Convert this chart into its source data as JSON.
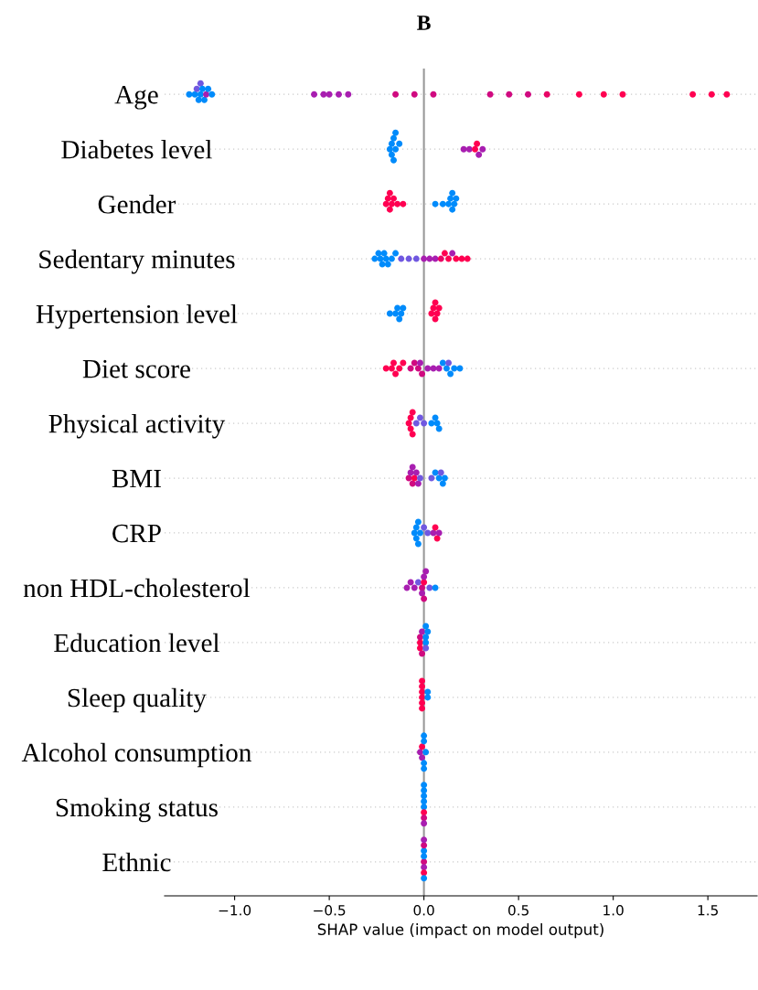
{
  "chart_data": {
    "type": "scatter",
    "orientation": "horizontal",
    "title": "B",
    "xlabel": "SHAP value (impact on model output)",
    "categories": [
      "Age",
      "Diabetes level",
      "Gender",
      "Sedentary minutes",
      "Hypertension level",
      "Diet score",
      "Physical activity",
      "BMI",
      "CRP",
      "non HDL-cholesterol",
      "Education level",
      "Sleep quality",
      "Alcohol consumption",
      "Smoking status",
      "Ethnic"
    ],
    "xlim": [
      -1.37,
      1.76
    ],
    "xticks": [
      {
        "value": -1.0,
        "label": "−1.0"
      },
      {
        "value": -0.5,
        "label": "−0.5"
      },
      {
        "value": 0.0,
        "label": "0.0"
      },
      {
        "value": 0.5,
        "label": "0.5"
      },
      {
        "value": 1.0,
        "label": "1.0"
      },
      {
        "value": 1.5,
        "label": "1.5"
      }
    ],
    "grid": "y",
    "tick_labels": "x",
    "ref_lines": [
      {
        "axis": "x",
        "value": 0,
        "color": "#999999"
      }
    ],
    "series": [
      {
        "values": [
          -1.24,
          -0.18,
          -0.2,
          -0.26,
          -0.18,
          -0.2,
          -0.08,
          -0.08,
          -0.05,
          -0.09,
          -0.02,
          -0.01,
          -0.02,
          0.0,
          0.0
        ],
        "colors": [
          "#008bfb",
          "#008bfb",
          "#ff0051",
          "#008bfb",
          "#008bfb",
          "#ff0051",
          "#ff0051",
          "#d00a80",
          "#008bfb",
          "#a81eb0",
          "#ff0051",
          "#ff0051",
          "#a81eb0",
          "#008bfb",
          "#d00a80"
        ]
      },
      {
        "values": [
          -1.21,
          -0.17,
          -0.19,
          -0.24,
          -0.15,
          -0.17,
          -0.07,
          -0.07,
          -0.04,
          -0.07,
          -0.02,
          -0.01,
          -0.01,
          0.0,
          0.0
        ],
        "colors": [
          "#008bfb",
          "#008bfb",
          "#ff0051",
          "#008bfb",
          "#008bfb",
          "#ff0051",
          "#ff0051",
          "#a81eb0",
          "#008bfb",
          "#a81eb0",
          "#d00a80",
          "#ff0051",
          "#ff0051",
          "#008bfb",
          "#008bfb"
        ]
      },
      {
        "values": [
          -1.2,
          -0.17,
          -0.18,
          -0.23,
          -0.14,
          -0.16,
          -0.07,
          -0.06,
          -0.04,
          -0.05,
          -0.02,
          -0.01,
          -0.01,
          0.0,
          0.0
        ],
        "colors": [
          "#7058e0",
          "#008bfb",
          "#ff0051",
          "#008bfb",
          "#008bfb",
          "#ff0051",
          "#ff0051",
          "#d00a80",
          "#008bfb",
          "#a81eb0",
          "#ff0051",
          "#ff0051",
          "#a81eb0",
          "#ff0051",
          "#a81eb0"
        ]
      },
      {
        "values": [
          -1.19,
          -0.16,
          -0.18,
          -0.22,
          -0.13,
          -0.15,
          -0.06,
          -0.06,
          -0.03,
          -0.03,
          -0.01,
          -0.01,
          0.0,
          0.0,
          0.0
        ],
        "colors": [
          "#008bfb",
          "#008bfb",
          "#ff0051",
          "#008bfb",
          "#008bfb",
          "#ff0051",
          "#ff0051",
          "#a81eb0",
          "#008bfb",
          "#7058e0",
          "#a81eb0",
          "#ff0051",
          "#008bfb",
          "#008bfb",
          "#008bfb"
        ]
      },
      {
        "values": [
          -1.18,
          -0.16,
          -0.17,
          -0.21,
          -0.12,
          -0.13,
          -0.06,
          -0.05,
          -0.03,
          -0.01,
          -0.01,
          -0.01,
          0.0,
          0.0,
          0.0
        ],
        "colors": [
          "#008bfb",
          "#008bfb",
          "#ff0051",
          "#008bfb",
          "#008bfb",
          "#ff0051",
          "#ff0051",
          "#ff0051",
          "#008bfb",
          "#d00a80",
          "#d00a80",
          "#ff0051",
          "#008bfb",
          "#d00a80",
          "#ff0051"
        ]
      },
      {
        "values": [
          -1.18,
          -0.15,
          -0.16,
          -0.2,
          -0.11,
          -0.11,
          -0.04,
          -0.04,
          -0.02,
          -0.01,
          0.01,
          -0.01,
          0.0,
          0.0,
          0.0
        ],
        "colors": [
          "#7058e0",
          "#008bfb",
          "#ff0051",
          "#008bfb",
          "#008bfb",
          "#ff0051",
          "#7058e0",
          "#a81eb0",
          "#008bfb",
          "#a81eb0",
          "#008bfb",
          "#ff0051",
          "#008bfb",
          "#008bfb",
          "#d00a80"
        ]
      },
      {
        "values": [
          -1.17,
          -0.15,
          -0.14,
          -0.19,
          0.04,
          -0.07,
          -0.02,
          -0.03,
          0.0,
          0.0,
          0.01,
          0.02,
          0.0,
          0.0,
          0.0
        ],
        "colors": [
          "#008bfb",
          "#008bfb",
          "#ff0051",
          "#008bfb",
          "#ff0051",
          "#d00a80",
          "#7058e0",
          "#a81eb0",
          "#7058e0",
          "#ff0051",
          "#008bfb",
          "#008bfb",
          "#008bfb",
          "#a81eb0",
          "#008bfb"
        ]
      },
      {
        "values": [
          -1.16,
          -0.13,
          -0.11,
          -0.17,
          0.05,
          -0.05,
          0.0,
          -0.02,
          0.02,
          0.0,
          0.01,
          0.02,
          0.01,
          0.0,
          0.0
        ],
        "colors": [
          "#008bfb",
          "#008bfb",
          "#ff0051",
          "#008bfb",
          "#ff0051",
          "#d00a80",
          "#7058e0",
          "#7058e0",
          "#7058e0",
          "#a81eb0",
          "#7058e0",
          "#008bfb",
          "#008bfb",
          "#008bfb",
          "#a81eb0"
        ]
      },
      {
        "values": [
          -1.15,
          0.21,
          0.06,
          -0.15,
          0.06,
          -0.03,
          0.04,
          0.04,
          0.05,
          0.0,
          0.01,
          null,
          null,
          null,
          null
        ],
        "colors": [
          "#a81eb0",
          "#a81eb0",
          "#008bfb",
          "#008bfb",
          "#ff0051",
          "#d00a80",
          "#008bfb",
          "#7058e0",
          "#a81eb0",
          "#d00a80",
          "#008bfb",
          null,
          null,
          null,
          null
        ]
      },
      {
        "values": [
          -1.14,
          0.24,
          0.1,
          -0.12,
          0.06,
          -0.02,
          0.06,
          0.06,
          0.06,
          0.01,
          0.02,
          null,
          null,
          null,
          null
        ],
        "colors": [
          "#008bfb",
          "#a81eb0",
          "#008bfb",
          "#7058e0",
          "#ff0051",
          "#a81eb0",
          "#008bfb",
          "#008bfb",
          "#ff0051",
          "#a81eb0",
          "#008bfb",
          null,
          null,
          null,
          null
        ]
      },
      {
        "values": [
          -1.12,
          0.27,
          0.13,
          -0.08,
          0.07,
          -0.01,
          0.07,
          0.08,
          0.07,
          0.03,
          null,
          null,
          null,
          null,
          null
        ],
        "colors": [
          "#008bfb",
          "#ff0051",
          "#008bfb",
          "#7058e0",
          "#ff0051",
          "#d00a80",
          "#008bfb",
          "#008bfb",
          "#ff0051",
          "#7058e0",
          null,
          null,
          null,
          null,
          null
        ]
      },
      {
        "values": [
          -0.58,
          0.28,
          0.14,
          -0.04,
          0.08,
          0.02,
          0.08,
          0.09,
          0.08,
          0.06,
          null,
          null,
          null,
          null,
          null
        ],
        "colors": [
          "#a81eb0",
          "#ff0051",
          "#008bfb",
          "#7058e0",
          "#ff0051",
          "#a81eb0",
          "#008bfb",
          "#7058e0",
          "#a81eb0",
          "#008bfb",
          null,
          null,
          null,
          null,
          null
        ]
      },
      {
        "values": [
          -0.53,
          0.29,
          0.15,
          0.0,
          null,
          0.05,
          null,
          0.1,
          null,
          null,
          null,
          null,
          null,
          null,
          null
        ],
        "colors": [
          "#a81eb0",
          "#a81eb0",
          "#008bfb",
          "#a81eb0",
          null,
          "#a81eb0",
          null,
          "#008bfb",
          null,
          null,
          null,
          null,
          null,
          null,
          null
        ]
      },
      {
        "values": [
          -0.5,
          0.31,
          0.15,
          0.03,
          null,
          0.08,
          null,
          0.11,
          null,
          null,
          null,
          null,
          null,
          null,
          null
        ],
        "colors": [
          "#a81eb0",
          "#a81eb0",
          "#008bfb",
          "#a81eb0",
          null,
          "#a81eb0",
          null,
          "#008bfb",
          null,
          null,
          null,
          null,
          null,
          null,
          null
        ]
      },
      {
        "values": [
          -0.45,
          null,
          0.16,
          0.06,
          null,
          0.1,
          null,
          null,
          null,
          null,
          null,
          null,
          null,
          null,
          null
        ],
        "colors": [
          "#a81eb0",
          null,
          "#008bfb",
          "#a81eb0",
          null,
          "#008bfb",
          null,
          null,
          null,
          null,
          null,
          null,
          null,
          null,
          null
        ]
      },
      {
        "values": [
          -0.4,
          null,
          0.17,
          0.09,
          null,
          0.12,
          null,
          null,
          null,
          null,
          null,
          null,
          null,
          null,
          null
        ],
        "colors": [
          "#a81eb0",
          null,
          "#008bfb",
          "#e80565",
          null,
          "#008bfb",
          null,
          null,
          null,
          null,
          null,
          null,
          null,
          null,
          null
        ]
      },
      {
        "values": [
          -0.15,
          null,
          null,
          0.11,
          null,
          0.13,
          null,
          null,
          null,
          null,
          null,
          null,
          null,
          null,
          null
        ],
        "colors": [
          "#d00a80",
          null,
          null,
          "#ff0051",
          null,
          "#7058e0",
          null,
          null,
          null,
          null,
          null,
          null,
          null,
          null,
          null
        ]
      },
      {
        "values": [
          -0.05,
          null,
          null,
          0.13,
          null,
          0.14,
          null,
          null,
          null,
          null,
          null,
          null,
          null,
          null,
          null
        ],
        "colors": [
          "#d00a80",
          null,
          null,
          "#ff0051",
          null,
          "#008bfb",
          null,
          null,
          null,
          null,
          null,
          null,
          null,
          null,
          null
        ]
      },
      {
        "values": [
          0.05,
          null,
          null,
          0.15,
          null,
          0.16,
          null,
          null,
          null,
          null,
          null,
          null,
          null,
          null,
          null
        ],
        "colors": [
          "#d00a80",
          null,
          null,
          "#a81eb0",
          null,
          "#008bfb",
          null,
          null,
          null,
          null,
          null,
          null,
          null,
          null,
          null
        ]
      },
      {
        "values": [
          0.35,
          null,
          null,
          0.17,
          null,
          0.19,
          null,
          null,
          null,
          null,
          null,
          null,
          null,
          null,
          null
        ],
        "colors": [
          "#d00a80",
          null,
          null,
          "#ff0051",
          null,
          "#008bfb",
          null,
          null,
          null,
          null,
          null,
          null,
          null,
          null,
          null
        ]
      },
      {
        "values": [
          0.45,
          null,
          null,
          0.2,
          null,
          null,
          null,
          null,
          null,
          null,
          null,
          null,
          null,
          null,
          null
        ],
        "colors": [
          "#d00a80",
          null,
          null,
          "#ff0051",
          null,
          null,
          null,
          null,
          null,
          null,
          null,
          null,
          null,
          null,
          null
        ]
      },
      {
        "values": [
          0.55,
          null,
          null,
          0.23,
          null,
          null,
          null,
          null,
          null,
          null,
          null,
          null,
          null,
          null,
          null
        ],
        "colors": [
          "#d00a80",
          null,
          null,
          "#ff0051",
          null,
          null,
          null,
          null,
          null,
          null,
          null,
          null,
          null,
          null,
          null
        ]
      },
      {
        "values": [
          0.65,
          null,
          null,
          null,
          null,
          null,
          null,
          null,
          null,
          null,
          null,
          null,
          null,
          null,
          null
        ],
        "colors": [
          "#e80565",
          null,
          null,
          null,
          null,
          null,
          null,
          null,
          null,
          null,
          null,
          null,
          null,
          null,
          null
        ]
      },
      {
        "values": [
          0.82,
          null,
          null,
          null,
          null,
          null,
          null,
          null,
          null,
          null,
          null,
          null,
          null,
          null,
          null
        ],
        "colors": [
          "#ff0051",
          null,
          null,
          null,
          null,
          null,
          null,
          null,
          null,
          null,
          null,
          null,
          null,
          null,
          null
        ]
      },
      {
        "values": [
          0.95,
          null,
          null,
          null,
          null,
          null,
          null,
          null,
          null,
          null,
          null,
          null,
          null,
          null,
          null
        ],
        "colors": [
          "#ff0051",
          null,
          null,
          null,
          null,
          null,
          null,
          null,
          null,
          null,
          null,
          null,
          null,
          null,
          null
        ]
      },
      {
        "values": [
          1.05,
          null,
          null,
          null,
          null,
          null,
          null,
          null,
          null,
          null,
          null,
          null,
          null,
          null,
          null
        ],
        "colors": [
          "#ff0051",
          null,
          null,
          null,
          null,
          null,
          null,
          null,
          null,
          null,
          null,
          null,
          null,
          null,
          null
        ]
      },
      {
        "values": [
          1.42,
          null,
          null,
          null,
          null,
          null,
          null,
          null,
          null,
          null,
          null,
          null,
          null,
          null,
          null
        ],
        "colors": [
          "#ff0051",
          null,
          null,
          null,
          null,
          null,
          null,
          null,
          null,
          null,
          null,
          null,
          null,
          null,
          null
        ]
      },
      {
        "values": [
          1.52,
          null,
          null,
          null,
          null,
          null,
          null,
          null,
          null,
          null,
          null,
          null,
          null,
          null,
          null
        ],
        "colors": [
          "#ff0051",
          null,
          null,
          null,
          null,
          null,
          null,
          null,
          null,
          null,
          null,
          null,
          null,
          null,
          null
        ]
      },
      {
        "values": [
          1.6,
          null,
          null,
          null,
          null,
          null,
          null,
          null,
          null,
          null,
          null,
          null,
          null,
          null,
          null
        ],
        "colors": [
          "#ff0051",
          null,
          null,
          null,
          null,
          null,
          null,
          null,
          null,
          null,
          null,
          null,
          null,
          null,
          null
        ]
      }
    ]
  }
}
